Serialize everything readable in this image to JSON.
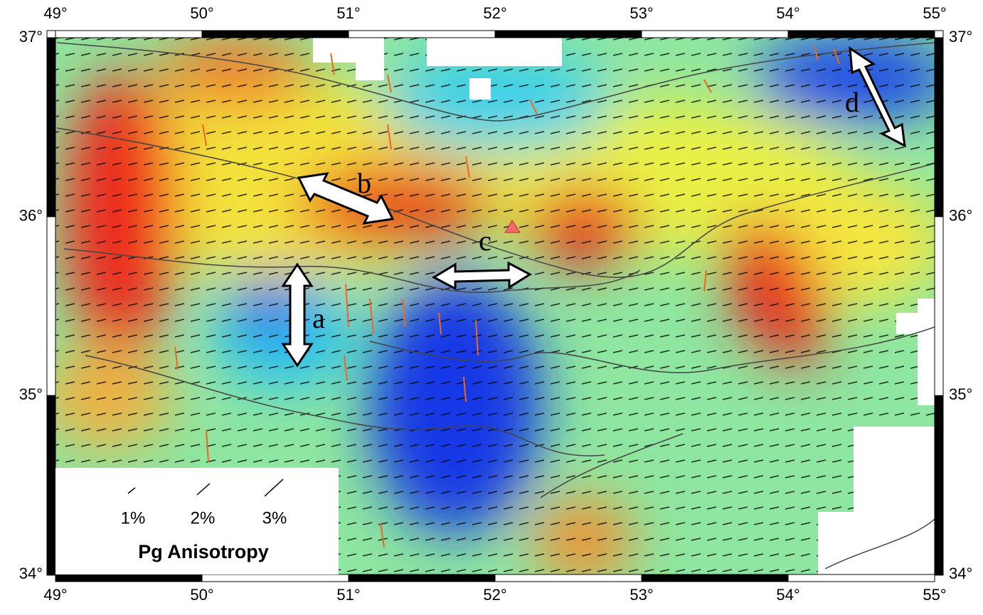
{
  "map": {
    "lon_ticks": [
      {
        "value": 49,
        "label": "49°"
      },
      {
        "value": 50,
        "label": "50°"
      },
      {
        "value": 51,
        "label": "51°"
      },
      {
        "value": 52,
        "label": "52°"
      },
      {
        "value": 53,
        "label": "53°"
      },
      {
        "value": 54,
        "label": "54°"
      },
      {
        "value": 55,
        "label": "55°"
      }
    ],
    "lat_ticks": [
      {
        "value": 34,
        "label": "34°"
      },
      {
        "value": 35,
        "label": "35°"
      },
      {
        "value": 36,
        "label": "36°"
      },
      {
        "value": 37,
        "label": "37°"
      }
    ],
    "annotations": [
      "a",
      "b",
      "c",
      "d"
    ],
    "legend": {
      "title": "Pg Anisotropy",
      "items": [
        "1%",
        "2%",
        "3%"
      ]
    }
  }
}
